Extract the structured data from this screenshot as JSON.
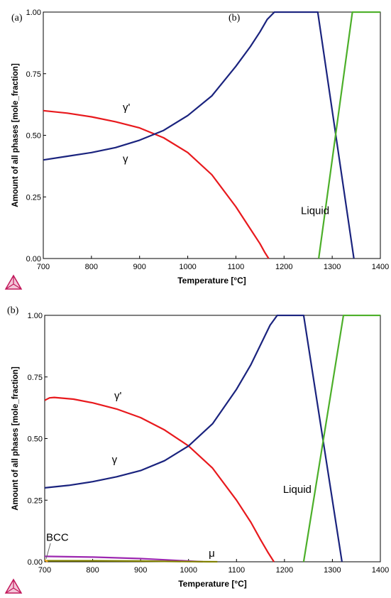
{
  "panels": [
    {
      "tag": "(a)",
      "tag2": "(b)"
    },
    {
      "tag": "(b)"
    }
  ],
  "chart_data": [
    {
      "type": "line",
      "title": "",
      "xlabel": "Temperature [°C]",
      "ylabel": "Amount of all phases [mole_fraction]",
      "xlim": [
        700,
        1400
      ],
      "ylim": [
        0,
        1
      ],
      "xticks": [
        "700",
        "800",
        "900",
        "1000",
        "1100",
        "1200",
        "1300",
        "1400"
      ],
      "yticks": [
        "0.00",
        "0.25",
        "0.50",
        "0.75",
        "1.00"
      ],
      "grid": false,
      "series": [
        {
          "name": "γ'",
          "color": "#e8191d",
          "x": [
            700,
            750,
            800,
            850,
            900,
            950,
            1000,
            1050,
            1100,
            1130,
            1150,
            1160,
            1168
          ],
          "y": [
            0.6,
            0.59,
            0.575,
            0.555,
            0.53,
            0.49,
            0.43,
            0.34,
            0.21,
            0.12,
            0.06,
            0.025,
            0.0
          ]
        },
        {
          "name": "γ",
          "color": "#1a237e",
          "x": [
            700,
            750,
            800,
            850,
            900,
            950,
            1000,
            1050,
            1100,
            1130,
            1150,
            1165,
            1180,
            1270,
            1345
          ],
          "y": [
            0.4,
            0.415,
            0.43,
            0.45,
            0.48,
            0.52,
            0.58,
            0.66,
            0.78,
            0.86,
            0.92,
            0.97,
            1.0,
            1.0,
            0.0
          ]
        },
        {
          "name": "Liquid",
          "color": "#4caf29",
          "x": [
            1272,
            1342,
            1400
          ],
          "y": [
            0.0,
            1.0,
            1.0
          ]
        }
      ],
      "annotations": [
        {
          "text": "γ'",
          "x": 865,
          "y": 0.6
        },
        {
          "text": "γ",
          "x": 865,
          "y": 0.39
        },
        {
          "text": "Liquid",
          "x": 1235,
          "y": 0.18
        }
      ]
    },
    {
      "type": "line",
      "title": "",
      "xlabel": "Temperature [°C]",
      "ylabel": "Amount of all phases [mole_fraction]",
      "xlim": [
        700,
        1400
      ],
      "ylim": [
        0,
        1
      ],
      "xticks": [
        "700",
        "800",
        "900",
        "1000",
        "1100",
        "1200",
        "1300",
        "1400"
      ],
      "yticks": [
        "0.00",
        "0.25",
        "0.50",
        "0.75",
        "1.00"
      ],
      "grid": false,
      "series": [
        {
          "name": "γ'",
          "color": "#e8191d",
          "x": [
            700,
            710,
            720,
            760,
            800,
            850,
            900,
            950,
            1000,
            1050,
            1100,
            1130,
            1150,
            1165,
            1178
          ],
          "y": [
            0.655,
            0.665,
            0.667,
            0.66,
            0.645,
            0.62,
            0.585,
            0.535,
            0.47,
            0.38,
            0.25,
            0.16,
            0.09,
            0.04,
            0.0
          ]
        },
        {
          "name": "γ",
          "color": "#1a237e",
          "x": [
            700,
            750,
            800,
            850,
            900,
            950,
            1000,
            1050,
            1100,
            1130,
            1150,
            1170,
            1185,
            1240,
            1320
          ],
          "y": [
            0.3,
            0.31,
            0.325,
            0.345,
            0.37,
            0.41,
            0.47,
            0.56,
            0.7,
            0.8,
            0.88,
            0.96,
            1.0,
            1.0,
            0.0
          ]
        },
        {
          "name": "Liquid",
          "color": "#4caf29",
          "x": [
            1240,
            1323,
            1400
          ],
          "y": [
            0.0,
            1.0,
            1.0
          ]
        },
        {
          "name": "BCC",
          "color": "#9c27b0",
          "x": [
            700,
            800,
            900,
            950,
            1000,
            1030
          ],
          "y": [
            0.022,
            0.019,
            0.013,
            0.008,
            0.003,
            0.0
          ]
        },
        {
          "name": "μ",
          "color": "#808000",
          "x": [
            700,
            800,
            900,
            1000,
            1060
          ],
          "y": [
            0.004,
            0.004,
            0.003,
            0.001,
            0.0
          ]
        },
        {
          "name": "",
          "color": "#f5a623",
          "x": [
            700,
            706
          ],
          "y": [
            0.008,
            0.0
          ]
        }
      ],
      "annotations": [
        {
          "text": "γ'",
          "x": 845,
          "y": 0.66
        },
        {
          "text": "γ",
          "x": 840,
          "y": 0.4
        },
        {
          "text": "Liquid",
          "x": 1197,
          "y": 0.28
        },
        {
          "text": "BCC",
          "x": 703,
          "y": 0.085
        },
        {
          "text": "μ",
          "x": 1042,
          "y": 0.02
        }
      ]
    }
  ]
}
